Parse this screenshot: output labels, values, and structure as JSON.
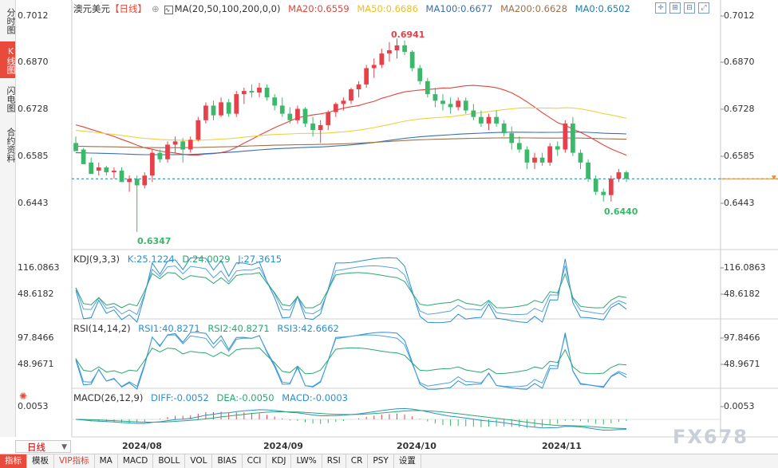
{
  "sidebar": {
    "tabs": [
      "分时图",
      "K线图",
      "闪电图",
      "合约资料"
    ],
    "active": 1
  },
  "main_legend": {
    "title": "澳元美元",
    "period_tag": "【日线】",
    "ma_label": "MA(20,50,100,200,0,0)",
    "ma20": "MA20:0.6559",
    "ma50": "MA50:0.6686",
    "ma100": "MA100:0.6677",
    "ma200": "MA200:0.6628",
    "ma0": "MA0:0.6502"
  },
  "kdj_legend": {
    "label": "KDJ(9,3,3)",
    "k": "K:25.1224",
    "d": "D:24.0029",
    "j": "J:27.3615"
  },
  "rsi_legend": {
    "label": "RSI(14,14,2)",
    "rsi1": "RSI1:40.8271",
    "rsi2": "RSI2:40.8271",
    "rsi3": "RSI3:42.6662"
  },
  "macd_legend": {
    "label": "MACD(26,12,9)",
    "diff": "DIFF:-0.0052",
    "dea": "DEA:-0.0050",
    "macd": "MACD:-0.0003"
  },
  "price_axis": [
    "0.7012",
    "0.6870",
    "0.6728",
    "0.6585",
    "0.6443"
  ],
  "kdj_axis": [
    "116.0863",
    "48.6182"
  ],
  "rsi_axis": [
    "97.8466",
    "48.9671"
  ],
  "macd_axis": [
    "0.0053"
  ],
  "annotations": {
    "high": "0.6941",
    "low": "0.6347",
    "recent_low": "0.6440"
  },
  "x_dates": [
    "2024/08",
    "2024/09",
    "2024/10",
    "2024/11"
  ],
  "period_box": "日线",
  "bottom_tabs": [
    "指标",
    "模板",
    "VIP指标",
    "MA",
    "MACD",
    "BOLL",
    "VOL",
    "BIAS",
    "CCI",
    "KDJ",
    "LW%",
    "RSI",
    "CR",
    "PSY",
    "设置"
  ],
  "watermark": "FX678",
  "colors": {
    "up": "#e8404a",
    "down": "#3bb86a",
    "ma20": "#e0463c",
    "ma50": "#f0d040",
    "ma100": "#3a6fb0",
    "ma200": "#a0704a",
    "ma0": "#1f7fb0"
  },
  "chart_data": {
    "type": "candlestick",
    "title": "澳元美元 日线",
    "ylim": [
      0.63,
      0.703
    ],
    "candles": [
      [
        0.662,
        0.664,
        0.66,
        0.6595
      ],
      [
        0.66,
        0.6605,
        0.656,
        0.6555
      ],
      [
        0.656,
        0.6575,
        0.653,
        0.6525
      ],
      [
        0.6535,
        0.656,
        0.652,
        0.6545
      ],
      [
        0.6545,
        0.655,
        0.652,
        0.653
      ],
      [
        0.653,
        0.6545,
        0.651,
        0.6535
      ],
      [
        0.6535,
        0.6545,
        0.65,
        0.65
      ],
      [
        0.65,
        0.652,
        0.647,
        0.651
      ],
      [
        0.651,
        0.652,
        0.6347,
        0.649
      ],
      [
        0.649,
        0.653,
        0.648,
        0.652
      ],
      [
        0.652,
        0.66,
        0.65,
        0.659
      ],
      [
        0.659,
        0.66,
        0.656,
        0.657
      ],
      [
        0.657,
        0.6625,
        0.656,
        0.6615
      ],
      [
        0.6615,
        0.664,
        0.659,
        0.6625
      ],
      [
        0.6625,
        0.6635,
        0.656,
        0.66
      ],
      [
        0.66,
        0.664,
        0.659,
        0.663
      ],
      [
        0.663,
        0.67,
        0.6625,
        0.669
      ],
      [
        0.669,
        0.6745,
        0.668,
        0.6735
      ],
      [
        0.6735,
        0.675,
        0.669,
        0.6705
      ],
      [
        0.6705,
        0.676,
        0.67,
        0.6745
      ],
      [
        0.6745,
        0.6755,
        0.67,
        0.671
      ],
      [
        0.671,
        0.678,
        0.67,
        0.677
      ],
      [
        0.677,
        0.679,
        0.674,
        0.678
      ],
      [
        0.678,
        0.68,
        0.676,
        0.6775
      ],
      [
        0.6775,
        0.6805,
        0.676,
        0.679
      ],
      [
        0.679,
        0.68,
        0.675,
        0.676
      ],
      [
        0.676,
        0.677,
        0.672,
        0.6735
      ],
      [
        0.6735,
        0.676,
        0.67,
        0.671
      ],
      [
        0.671,
        0.673,
        0.668,
        0.669
      ],
      [
        0.669,
        0.6735,
        0.668,
        0.6725
      ],
      [
        0.6725,
        0.673,
        0.667,
        0.668
      ],
      [
        0.668,
        0.67,
        0.664,
        0.666
      ],
      [
        0.666,
        0.669,
        0.662,
        0.6675
      ],
      [
        0.6675,
        0.672,
        0.666,
        0.6715
      ],
      [
        0.6715,
        0.6745,
        0.67,
        0.674
      ],
      [
        0.674,
        0.676,
        0.672,
        0.675
      ],
      [
        0.675,
        0.679,
        0.674,
        0.6785
      ],
      [
        0.6785,
        0.681,
        0.676,
        0.68
      ],
      [
        0.68,
        0.686,
        0.679,
        0.685
      ],
      [
        0.685,
        0.688,
        0.682,
        0.686
      ],
      [
        0.686,
        0.691,
        0.685,
        0.6895
      ],
      [
        0.6895,
        0.693,
        0.687,
        0.6905
      ],
      [
        0.6905,
        0.6941,
        0.688,
        0.692
      ],
      [
        0.692,
        0.6935,
        0.689,
        0.69
      ],
      [
        0.69,
        0.6905,
        0.684,
        0.685
      ],
      [
        0.685,
        0.686,
        0.68,
        0.681
      ],
      [
        0.681,
        0.682,
        0.676,
        0.677
      ],
      [
        0.677,
        0.679,
        0.673,
        0.675
      ],
      [
        0.675,
        0.677,
        0.672,
        0.674
      ],
      [
        0.674,
        0.676,
        0.671,
        0.673
      ],
      [
        0.673,
        0.676,
        0.672,
        0.675
      ],
      [
        0.675,
        0.676,
        0.671,
        0.672
      ],
      [
        0.672,
        0.674,
        0.669,
        0.67
      ],
      [
        0.67,
        0.672,
        0.667,
        0.668
      ],
      [
        0.668,
        0.671,
        0.666,
        0.67
      ],
      [
        0.67,
        0.672,
        0.667,
        0.668
      ],
      [
        0.668,
        0.669,
        0.664,
        0.665
      ],
      [
        0.665,
        0.667,
        0.66,
        0.662
      ],
      [
        0.662,
        0.664,
        0.659,
        0.66
      ],
      [
        0.66,
        0.661,
        0.654,
        0.656
      ],
      [
        0.656,
        0.659,
        0.654,
        0.6575
      ],
      [
        0.6575,
        0.659,
        0.655,
        0.656
      ],
      [
        0.656,
        0.662,
        0.655,
        0.661
      ],
      [
        0.661,
        0.6625,
        0.658,
        0.66
      ],
      [
        0.66,
        0.669,
        0.659,
        0.668
      ],
      [
        0.668,
        0.67,
        0.658,
        0.659
      ],
      [
        0.659,
        0.66,
        0.654,
        0.656
      ],
      [
        0.656,
        0.657,
        0.65,
        0.651
      ],
      [
        0.651,
        0.652,
        0.646,
        0.647
      ],
      [
        0.647,
        0.648,
        0.644,
        0.646
      ],
      [
        0.646,
        0.652,
        0.644,
        0.651
      ],
      [
        0.651,
        0.654,
        0.65,
        0.653
      ],
      [
        0.653,
        0.6535,
        0.65,
        0.651
      ]
    ],
    "overlay_series": [
      "MA20",
      "MA50",
      "MA100",
      "MA200",
      "MA0"
    ]
  }
}
